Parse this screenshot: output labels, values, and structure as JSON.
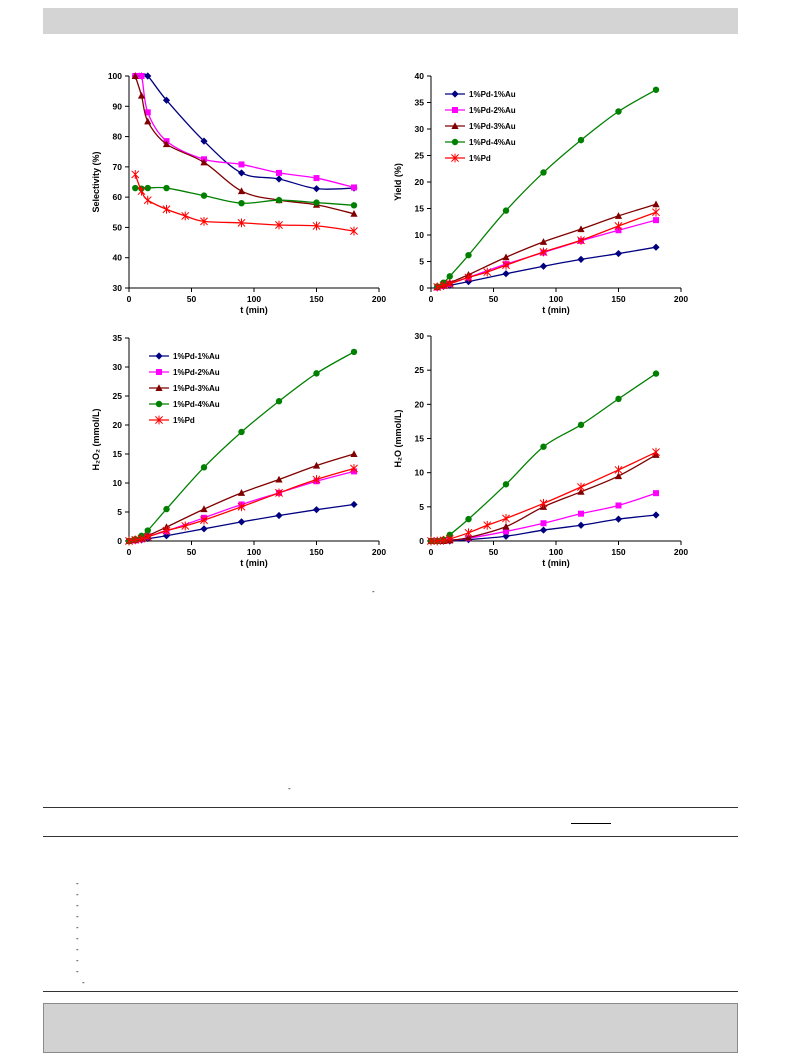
{
  "chart_data": [
    {
      "type": "line",
      "title": "",
      "xlabel": "t (min)",
      "ylabel": "Selectivity (%)",
      "xlim": [
        0,
        200
      ],
      "ylim": [
        30,
        100
      ],
      "xticks": [
        0,
        50,
        100,
        150,
        200
      ],
      "yticks": [
        30,
        40,
        50,
        60,
        70,
        80,
        90,
        100
      ],
      "legend": "none",
      "series": [
        {
          "name": "1%Pd-1%Au",
          "color": "#000080",
          "marker": "diamond",
          "x": [
            5,
            10,
            15,
            30,
            60,
            90,
            120,
            150,
            180
          ],
          "y": [
            100,
            100,
            100,
            92,
            78.5,
            68,
            66,
            62.8,
            63
          ]
        },
        {
          "name": "1%Pd-2%Au",
          "color": "#ff00ff",
          "marker": "square",
          "x": [
            5,
            10,
            15,
            30,
            60,
            90,
            120,
            150,
            180
          ],
          "y": [
            100,
            100,
            88,
            78.5,
            72.5,
            70.8,
            68,
            66.3,
            63.2
          ]
        },
        {
          "name": "1%Pd-3%Au",
          "color": "#800000",
          "marker": "triangle",
          "x": [
            5,
            10,
            15,
            30,
            60,
            90,
            120,
            150,
            180
          ],
          "y": [
            100,
            93.5,
            85,
            77.5,
            71.5,
            62,
            59,
            57.5,
            54.5
          ]
        },
        {
          "name": "1%Pd-4%Au",
          "color": "#008000",
          "marker": "circle",
          "x": [
            5,
            10,
            15,
            30,
            60,
            90,
            120,
            150,
            180
          ],
          "y": [
            63,
            62.8,
            63,
            63,
            60.5,
            58,
            59,
            58.2,
            57.3
          ]
        },
        {
          "name": "1%Pd",
          "color": "#ff0000",
          "marker": "star",
          "x": [
            5,
            10,
            15,
            30,
            45,
            60,
            90,
            120,
            150,
            180
          ],
          "y": [
            67.5,
            62,
            59,
            56,
            53.8,
            52,
            51.5,
            50.8,
            50.5,
            48.8
          ]
        }
      ]
    },
    {
      "type": "line",
      "title": "",
      "xlabel": "t (min)",
      "ylabel": "Yield (%)",
      "xlim": [
        0,
        200
      ],
      "ylim": [
        0,
        40
      ],
      "xticks": [
        0,
        50,
        100,
        150,
        200
      ],
      "yticks": [
        0,
        5,
        10,
        15,
        20,
        25,
        30,
        35,
        40
      ],
      "legend": "top-left",
      "series": [
        {
          "name": "1%Pd-1%Au",
          "color": "#000080",
          "marker": "diamond",
          "x": [
            5,
            10,
            15,
            30,
            60,
            90,
            120,
            150,
            180
          ],
          "y": [
            0.1,
            0.3,
            0.5,
            1.2,
            2.7,
            4.1,
            5.4,
            6.5,
            7.7
          ]
        },
        {
          "name": "1%Pd-2%Au",
          "color": "#ff00ff",
          "marker": "square",
          "x": [
            5,
            10,
            15,
            30,
            60,
            90,
            120,
            150,
            180
          ],
          "y": [
            0.1,
            0.4,
            0.8,
            2.0,
            4.5,
            6.7,
            8.9,
            10.9,
            12.8
          ]
        },
        {
          "name": "1%Pd-3%Au",
          "color": "#800000",
          "marker": "triangle",
          "x": [
            5,
            10,
            15,
            30,
            60,
            90,
            120,
            150,
            180
          ],
          "y": [
            0.2,
            0.5,
            1.0,
            2.5,
            5.8,
            8.7,
            11.1,
            13.6,
            15.8
          ]
        },
        {
          "name": "1%Pd-4%Au",
          "color": "#008000",
          "marker": "circle",
          "x": [
            5,
            10,
            15,
            30,
            60,
            90,
            120,
            150,
            180
          ],
          "y": [
            0.3,
            1.0,
            2.2,
            6.2,
            14.6,
            21.8,
            27.9,
            33.3,
            37.4
          ]
        },
        {
          "name": "1%Pd",
          "color": "#ff0000",
          "marker": "star",
          "x": [
            5,
            10,
            15,
            30,
            45,
            60,
            90,
            120,
            150,
            180
          ],
          "y": [
            0.2,
            0.5,
            0.8,
            2.0,
            3.0,
            4.3,
            6.8,
            9.0,
            11.7,
            14.3
          ]
        }
      ]
    },
    {
      "type": "line",
      "title": "",
      "xlabel": "t (min)",
      "ylabel": "H₂O₂ (mmol/L)",
      "xlim": [
        0,
        200
      ],
      "ylim": [
        0,
        35
      ],
      "xticks": [
        0,
        50,
        100,
        150,
        200
      ],
      "yticks": [
        0,
        5,
        10,
        15,
        20,
        25,
        30,
        35
      ],
      "legend": "top-left",
      "series": [
        {
          "name": "1%Pd-1%Au",
          "color": "#000080",
          "marker": "diamond",
          "x": [
            0,
            5,
            10,
            15,
            30,
            60,
            90,
            120,
            150,
            180
          ],
          "y": [
            0,
            0.1,
            0.2,
            0.4,
            0.9,
            2.1,
            3.3,
            4.4,
            5.4,
            6.3
          ]
        },
        {
          "name": "1%Pd-2%Au",
          "color": "#ff00ff",
          "marker": "square",
          "x": [
            0,
            5,
            10,
            15,
            30,
            60,
            90,
            120,
            150,
            180
          ],
          "y": [
            0,
            0.1,
            0.3,
            0.8,
            1.7,
            4.0,
            6.3,
            8.3,
            10.3,
            12.0
          ]
        },
        {
          "name": "1%Pd-3%Au",
          "color": "#800000",
          "marker": "triangle",
          "x": [
            0,
            5,
            10,
            15,
            30,
            60,
            90,
            120,
            150,
            180
          ],
          "y": [
            0,
            0.2,
            0.4,
            0.9,
            2.4,
            5.5,
            8.3,
            10.6,
            13.0,
            15.0
          ]
        },
        {
          "name": "1%Pd-4%Au",
          "color": "#008000",
          "marker": "circle",
          "x": [
            0,
            5,
            10,
            15,
            30,
            60,
            90,
            120,
            150,
            180
          ],
          "y": [
            0,
            0.3,
            0.9,
            1.8,
            5.5,
            12.7,
            18.8,
            24.1,
            28.9,
            32.6
          ]
        },
        {
          "name": "1%Pd",
          "color": "#ff0000",
          "marker": "star",
          "x": [
            0,
            5,
            10,
            15,
            30,
            45,
            60,
            90,
            120,
            150,
            180
          ],
          "y": [
            0,
            0.2,
            0.4,
            0.7,
            1.8,
            2.6,
            3.6,
            5.9,
            8.3,
            10.6,
            12.5
          ]
        }
      ]
    },
    {
      "type": "line",
      "title": "",
      "xlabel": "t (min)",
      "ylabel": "H₂O (mmol/L)",
      "xlim": [
        0,
        200
      ],
      "ylim": [
        0,
        30
      ],
      "xticks": [
        0,
        50,
        100,
        150,
        200
      ],
      "yticks": [
        0,
        5,
        10,
        15,
        20,
        25,
        30
      ],
      "legend": "none",
      "series": [
        {
          "name": "1%Pd-1%Au",
          "color": "#000080",
          "marker": "diamond",
          "x": [
            0,
            5,
            10,
            15,
            30,
            60,
            90,
            120,
            150,
            180
          ],
          "y": [
            0,
            0,
            0,
            0,
            0.2,
            0.7,
            1.6,
            2.3,
            3.2,
            3.8
          ]
        },
        {
          "name": "1%Pd-2%Au",
          "color": "#ff00ff",
          "marker": "square",
          "x": [
            0,
            5,
            10,
            15,
            30,
            60,
            90,
            120,
            150,
            180
          ],
          "y": [
            0,
            0,
            0,
            0.1,
            0.4,
            1.4,
            2.6,
            4.0,
            5.2,
            7.0
          ]
        },
        {
          "name": "1%Pd-3%Au",
          "color": "#800000",
          "marker": "triangle",
          "x": [
            0,
            5,
            10,
            15,
            30,
            60,
            90,
            120,
            150,
            180
          ],
          "y": [
            0,
            0,
            0,
            0.1,
            0.5,
            2.1,
            5.0,
            7.2,
            9.5,
            12.6
          ]
        },
        {
          "name": "1%Pd-4%Au",
          "color": "#008000",
          "marker": "circle",
          "x": [
            0,
            5,
            10,
            15,
            30,
            60,
            90,
            120,
            150,
            180
          ],
          "y": [
            0,
            0,
            0.2,
            0.9,
            3.2,
            8.3,
            13.8,
            17.0,
            20.8,
            24.5
          ]
        },
        {
          "name": "1%Pd",
          "color": "#ff0000",
          "marker": "star",
          "x": [
            0,
            5,
            10,
            15,
            30,
            45,
            60,
            90,
            120,
            150,
            180
          ],
          "y": [
            0,
            0,
            0.1,
            0.3,
            1.2,
            2.3,
            3.3,
            5.5,
            7.9,
            10.4,
            13.0
          ]
        }
      ]
    }
  ]
}
